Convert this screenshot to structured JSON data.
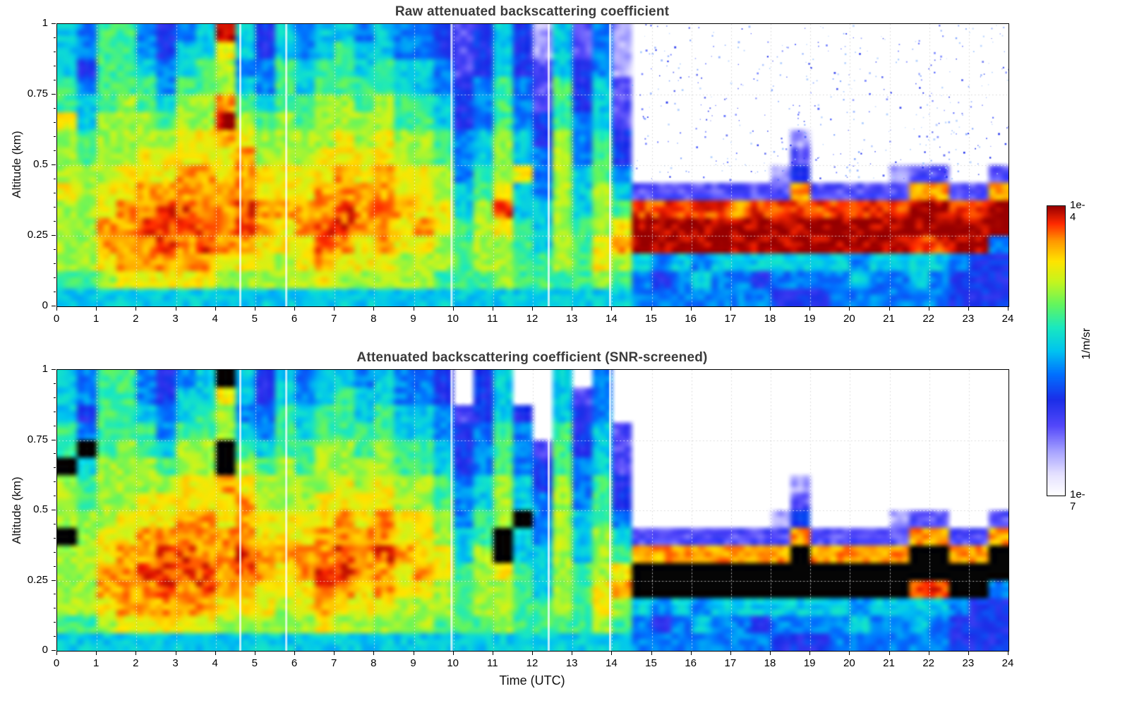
{
  "figure": {
    "background": "#ffffff",
    "colorbar": {
      "top_label": "1e-4",
      "bottom_label": "1e-7",
      "unit_label": "1/m/sr"
    },
    "colormap": {
      "name": "jet-with-white-low-end",
      "stops": [
        [
          0.0,
          "#ffffff"
        ],
        [
          0.07,
          "#e6e2ff"
        ],
        [
          0.15,
          "#a8a4ff"
        ],
        [
          0.24,
          "#5348fa"
        ],
        [
          0.33,
          "#1b2ee8"
        ],
        [
          0.42,
          "#0072ff"
        ],
        [
          0.5,
          "#00c4f0"
        ],
        [
          0.58,
          "#19e8c0"
        ],
        [
          0.66,
          "#63f55e"
        ],
        [
          0.74,
          "#c6f51e"
        ],
        [
          0.81,
          "#ffe400"
        ],
        [
          0.88,
          "#ff9800"
        ],
        [
          0.94,
          "#ff2a00"
        ],
        [
          1.0,
          "#990000"
        ]
      ]
    },
    "encoding": {
      "description": "Each column string is one 0.5 h time bin, 16 chars from top (1 km) to bottom (0 km). Chars map to log10(attenuated backscatter, 1/m/sr).",
      "no_data_char": ".",
      "black_char": "K",
      "black_meaning": "saturated / SNR-screened overload (rendered black)",
      "levels": {
        "1": -6.8,
        "2": -6.58,
        "3": -6.28,
        "4": -6.01,
        "5": -5.71,
        "6": -5.44,
        "7": -5.14,
        "8": -4.87,
        "9": -4.63,
        "A": -4.39,
        "B": -4.21,
        "C": -4.0
      }
    }
  },
  "chart_data": [
    {
      "type": "heatmap",
      "title": "Raw attenuated backscattering coefficient",
      "xlabel": "",
      "ylabel": "Altitude (km)",
      "units": "1/m/sr",
      "scale": "log10",
      "vmin": 1e-07,
      "vmax": 0.0001,
      "x_range_hours": [
        0,
        24
      ],
      "y_range_km": [
        0,
        1
      ],
      "time_step_hours": 0.5,
      "alt_step_km": 0.0625,
      "x_ticks": [
        "0",
        "1",
        "2",
        "3",
        "4",
        "5",
        "6",
        "7",
        "8",
        "9",
        "10",
        "11",
        "12",
        "13",
        "14",
        "15",
        "16",
        "17",
        "18",
        "19",
        "20",
        "21",
        "22",
        "23",
        "24"
      ],
      "y_ticks": [
        "0",
        "0.25",
        "0.5",
        "0.75",
        "1"
      ],
      "grid": {
        "x_every_hours": 1,
        "y_at": [
          0.25,
          0.5,
          0.75
        ],
        "style": "dotted"
      },
      "white_gap_times": [
        4.62,
        5.78,
        9.95,
        12.4,
        13.95
      ],
      "noise_speckle": {
        "present": true,
        "region_x_hours": [
          14.4,
          24
        ],
        "region_y_km": [
          0.45,
          1.0
        ],
        "count": 460
      },
      "columns": [
        "6667798889888876",
        "5545667788888876",
        "77777888899AA986",
        "7777888899AAAA96",
        "556778899AABAA96",
        "445567899ABBBA96",
        "56678899AABBAA96",
        "66778899AAABBA96",
        "C988ACA99AAAA986",
        "6656789AAABBA986",
        "4455678899AA9986",
        "6677788899A99886",
        "5566778899AA9986",
        "667788899AABBA96",
        "67778899AABBA986",
        "566778899AAA9986",
        "66778899AABAA986",
        "5566778899A99886",
        "55667788999A9886",
        "4455667788998876",
        "3334445556677776",
        "4445556677888876",
        "6667778889B98886",
        "4445556696677776",
        "2233344555666776",
        "6667778888888876",
        "3344455566677776",
        "5556667778889986",
        "222333445679A876",
        ".........3BCC655",
        ".........3BCC545",
        ".........3BCC655",
        ".........3BCC565",
        ".........3BCC655",
        ".........3ACC655",
        ".........3BCC645",
        "........23BCC654",
        "......234ABCC654",
        ".........3BCC654",
        ".........3BCC655",
        ".........3BCC565",
        ".........3BCC655",
        "........23BCC655",
        "........3ACCB665",
        "........3ACCB655",
        ".........3BCC544",
        ".........3BCC444",
        "........3ACC5444"
      ]
    },
    {
      "type": "heatmap",
      "title": "Attenuated backscattering coefficient (SNR-screened)",
      "xlabel": "Time (UTC)",
      "ylabel": "Altitude (km)",
      "units": "1/m/sr",
      "scale": "log10",
      "vmin": 1e-07,
      "vmax": 0.0001,
      "x_range_hours": [
        0,
        24
      ],
      "y_range_km": [
        0,
        1
      ],
      "time_step_hours": 0.5,
      "alt_step_km": 0.0625,
      "x_ticks": [
        "0",
        "1",
        "2",
        "3",
        "4",
        "5",
        "6",
        "7",
        "8",
        "9",
        "10",
        "11",
        "12",
        "13",
        "14",
        "15",
        "16",
        "17",
        "18",
        "19",
        "20",
        "21",
        "22",
        "23",
        "24"
      ],
      "y_ticks": [
        "0",
        "0.25",
        "0.5",
        "0.75",
        "1"
      ],
      "grid": {
        "x_every_hours": 1,
        "y_at": [
          0.25,
          0.5,
          0.75
        ],
        "style": "dotted"
      },
      "white_gap_times": [
        4.62,
        5.78,
        9.95,
        12.4,
        13.95
      ],
      "noise_speckle": {
        "present": false
      },
      "columns": [
        "66677K888K888876",
        "5545K67788888876",
        "77777888899AA986",
        "7777888899AAAA96",
        "556778899AABAA96",
        "445567899ABBBA96",
        "56678899AABBAA96",
        "66778899AAABBA96",
        "K988KKA99AAAA986",
        "6656789AAABBA986",
        "4455678899AA9986",
        "6677788899A99886",
        "5566778899AA9986",
        "667788899AABBA96",
        "67778899AABBA986",
        "566778899AAA9986",
        "66778899AABAA986",
        "5566778899A99886",
        "55667788999A9886",
        "4455667788998876",
        "..34445556677776",
        "4445556677888876",
        "666777888KK98886",
        "..455566K6677776",
        "....344555666776",
        "6667778888888876",
        ".344455566677776",
        "5556667778889986",
        "...333445679A876",
        ".........3AKK655",
        ".........3AKK545",
        ".........3AKK655",
        ".........3AKK565",
        ".........3AKK655",
        ".........3AKK655",
        ".........3AKK645",
        "........23AKK654",
        "......234AKKK654",
        ".........3AKK654",
        ".........3AKK655",
        ".........3AKK565",
        ".........3AKK655",
        "........23AKK655",
        "........3AKKB665",
        "........3AKKB655",
        ".........3AKK544",
        ".........3AKK444",
        "........3AKK5444"
      ]
    }
  ]
}
